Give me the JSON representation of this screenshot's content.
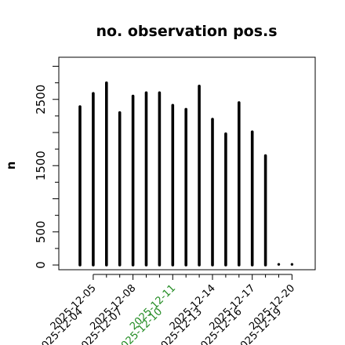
{
  "chart_data": {
    "type": "bar",
    "title": "no. observation pos.s",
    "xlabel": "",
    "ylabel": "n",
    "ylim": [
      -30,
      3000
    ],
    "yticks": [
      0,
      500,
      1500,
      2500
    ],
    "grid": false,
    "categories": [
      "2025-12-04",
      "2025-12-05",
      "2025-12-06",
      "2025-12-07",
      "2025-12-08",
      "2025-12-09",
      "2025-12-10",
      "2025-12-11",
      "2025-12-12",
      "2025-12-13",
      "2025-12-14",
      "2025-12-15",
      "2025-12-16",
      "2025-12-17",
      "2025-12-18",
      "2025-12-19",
      "2025-12-20"
    ],
    "values": [
      2390,
      2590,
      2750,
      2300,
      2550,
      2600,
      2600,
      2410,
      2350,
      2700,
      2200,
      1980,
      2450,
      2010,
      1650,
      10,
      10
    ],
    "xticks": [
      {
        "label": "2025-12-04",
        "color": "#000000"
      },
      {
        "label": "2025-12-05",
        "color": "#000000"
      },
      {
        "label": "2025-12-07",
        "color": "#000000"
      },
      {
        "label": "2025-12-08",
        "color": "#000000"
      },
      {
        "label": "2025-12-10",
        "color": "#228B22"
      },
      {
        "label": "2025-12-11",
        "color": "#228B22"
      },
      {
        "label": "2025-12-13",
        "color": "#000000"
      },
      {
        "label": "2025-12-14",
        "color": "#000000"
      },
      {
        "label": "2025-12-16",
        "color": "#000000"
      },
      {
        "label": "2025-12-17",
        "color": "#000000"
      },
      {
        "label": "2025-12-19",
        "color": "#000000"
      },
      {
        "label": "2025-12-20",
        "color": "#000000"
      }
    ],
    "bar_color": "#000000"
  }
}
